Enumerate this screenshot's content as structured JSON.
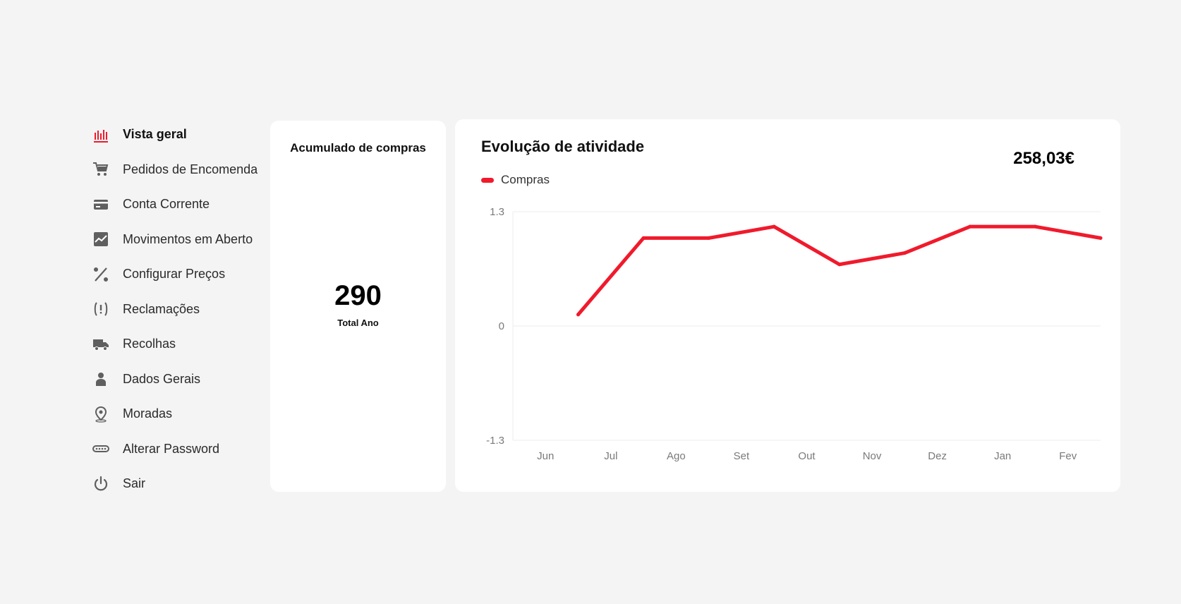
{
  "sidebar": {
    "items": [
      {
        "label": "Vista geral",
        "icon": "bar-chart-icon",
        "active": true
      },
      {
        "label": "Pedidos de Encomenda",
        "icon": "cart-icon",
        "active": false
      },
      {
        "label": "Conta Corrente",
        "icon": "credit-card-icon",
        "active": false
      },
      {
        "label": "Movimentos em Aberto",
        "icon": "trend-chart-icon",
        "active": false
      },
      {
        "label": "Configurar Preços",
        "icon": "percent-icon",
        "active": false
      },
      {
        "label": "Reclamações",
        "icon": "exclamation-icon",
        "active": false
      },
      {
        "label": "Recolhas",
        "icon": "truck-icon",
        "active": false
      },
      {
        "label": "Dados Gerais",
        "icon": "user-icon",
        "active": false
      },
      {
        "label": "Moradas",
        "icon": "location-pin-icon",
        "active": false
      },
      {
        "label": "Alterar Password",
        "icon": "password-icon",
        "active": false
      },
      {
        "label": "Sair",
        "icon": "power-icon",
        "active": false
      }
    ]
  },
  "accumulated": {
    "title": "Acumulado de compras",
    "value": "290",
    "caption": "Total Ano"
  },
  "activity": {
    "title": "Evolução de atividade",
    "total": "258,03€",
    "legend_label": "Compras"
  },
  "colors": {
    "accent": "#f01a2c",
    "icon_gray": "#5f5f5f",
    "background": "#f4f4f4",
    "card": "#ffffff"
  },
  "chart_data": {
    "type": "line",
    "categories": [
      "Jun",
      "Jul",
      "Ago",
      "Set",
      "Out",
      "Nov",
      "Dez",
      "Jan",
      "Fev"
    ],
    "series": [
      {
        "name": "Compras",
        "values": [
          0.13,
          1.0,
          1.0,
          1.13,
          0.7,
          0.83,
          1.13,
          1.13,
          1.0
        ]
      }
    ],
    "yticks": [
      "1.3",
      "0",
      "-1.3"
    ],
    "ylim": [
      -1.3,
      1.3
    ],
    "grid": true,
    "legend": "top-left"
  }
}
